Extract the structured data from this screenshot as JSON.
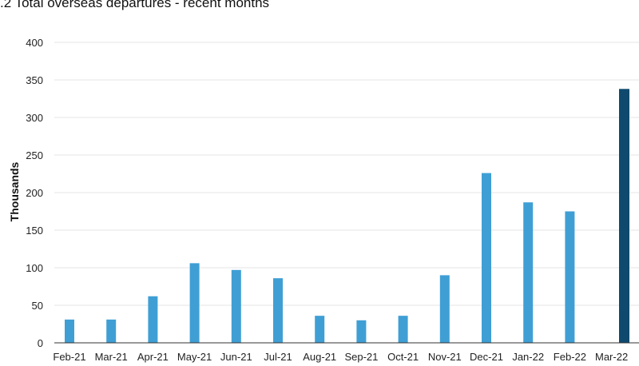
{
  "title": ".2 Total overseas departures - recent months",
  "chart_data": {
    "type": "bar",
    "title": ".2 Total overseas departures - recent months",
    "xlabel": "",
    "ylabel": "Thousands",
    "categories": [
      "Feb-21",
      "Mar-21",
      "Apr-21",
      "May-21",
      "Jun-21",
      "Jul-21",
      "Aug-21",
      "Sep-21",
      "Oct-21",
      "Nov-21",
      "Dec-21",
      "Jan-22",
      "Feb-22",
      "Mar-22"
    ],
    "values": [
      31,
      31,
      62,
      106,
      97,
      86,
      36,
      30,
      36,
      90,
      226,
      187,
      175,
      338
    ],
    "ylim": [
      0,
      400
    ],
    "yticks": [
      0,
      50,
      100,
      150,
      200,
      250,
      300,
      350,
      400
    ],
    "grid": true,
    "colors": {
      "bar": "#3f9fd5",
      "highlight": "#0f4a6e",
      "grid": "#e4e4e4",
      "axis": "#333333"
    },
    "highlight_index": 13
  }
}
